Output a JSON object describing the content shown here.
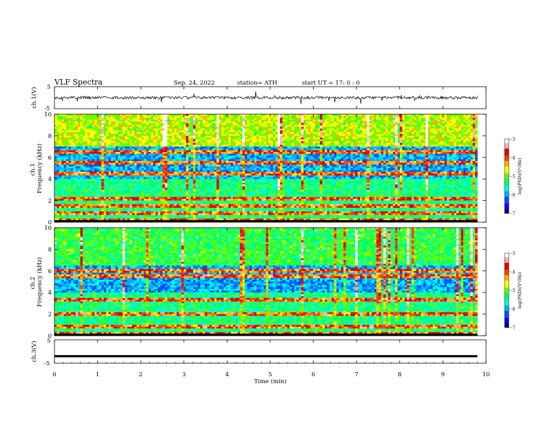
{
  "header": {
    "title": "VLF  Spectra",
    "date": "Sep. 24, 2022",
    "station": "station= ATH",
    "start": "start  UT  =    17: 0   : 0"
  },
  "chart_data": [
    {
      "type": "line",
      "name": "ch1-waveform",
      "ylabel": "ch.1(V)",
      "ylim": [
        -5,
        5
      ],
      "yticks": [
        "5",
        "-5"
      ],
      "xlim": [
        0,
        10
      ],
      "approx_level": 0
    },
    {
      "type": "heatmap",
      "name": "ch1-spectrogram",
      "ylabel": "ch.1\nFrequency (kHz)",
      "ylim": [
        0,
        10
      ],
      "yticks": [
        "0",
        "2",
        "4",
        "6",
        "8",
        "10"
      ],
      "xlim": [
        0,
        10
      ],
      "data_extent_min": 9.8,
      "colorbar": {
        "label": "log(PSD)(V²/Hz)",
        "range": [
          -7,
          -3
        ],
        "ticks": [
          "-3",
          "-4",
          "-5",
          "-6",
          "-7"
        ]
      },
      "bands_khz": [
        6.5,
        5.5,
        4.5,
        2.2,
        1.5,
        0.8,
        0.2
      ]
    },
    {
      "type": "heatmap",
      "name": "ch2-spectrogram",
      "ylabel": "ch.2\nFrequency (kHz)",
      "ylim": [
        0,
        10
      ],
      "yticks": [
        "0",
        "2",
        "4",
        "6",
        "8",
        "10"
      ],
      "xlim": [
        0,
        10
      ],
      "data_extent_min": 9.8,
      "colorbar": {
        "label": "log(PSD)(V²/Hz)",
        "range": [
          -7,
          -3
        ],
        "ticks": [
          "-3",
          "-4",
          "-5",
          "-6",
          "-7"
        ]
      },
      "bands_khz": [
        6.0,
        5.5,
        3.3,
        2.0,
        0.8,
        0.2
      ]
    },
    {
      "type": "line",
      "name": "ch3-waveform",
      "ylabel": "ch.3(V)",
      "ylim": [
        -5,
        5
      ],
      "yticks": [
        "5",
        "-5"
      ],
      "xlim": [
        0,
        10
      ],
      "approx_level": -2
    }
  ],
  "xaxis": {
    "label": "Time  (min)",
    "ticks": [
      "0",
      "1",
      "2",
      "3",
      "4",
      "5",
      "6",
      "7",
      "8",
      "9",
      "10"
    ]
  },
  "colors": {
    "colormap": [
      "#00007a",
      "#0000ff",
      "#0050ff",
      "#00b0ff",
      "#00ffd8",
      "#00ff70",
      "#66ff00",
      "#ffff00",
      "#ffb000",
      "#ff4000",
      "#e00000",
      "#ffb0b0",
      "#ffffff"
    ],
    "line": "#000000"
  }
}
